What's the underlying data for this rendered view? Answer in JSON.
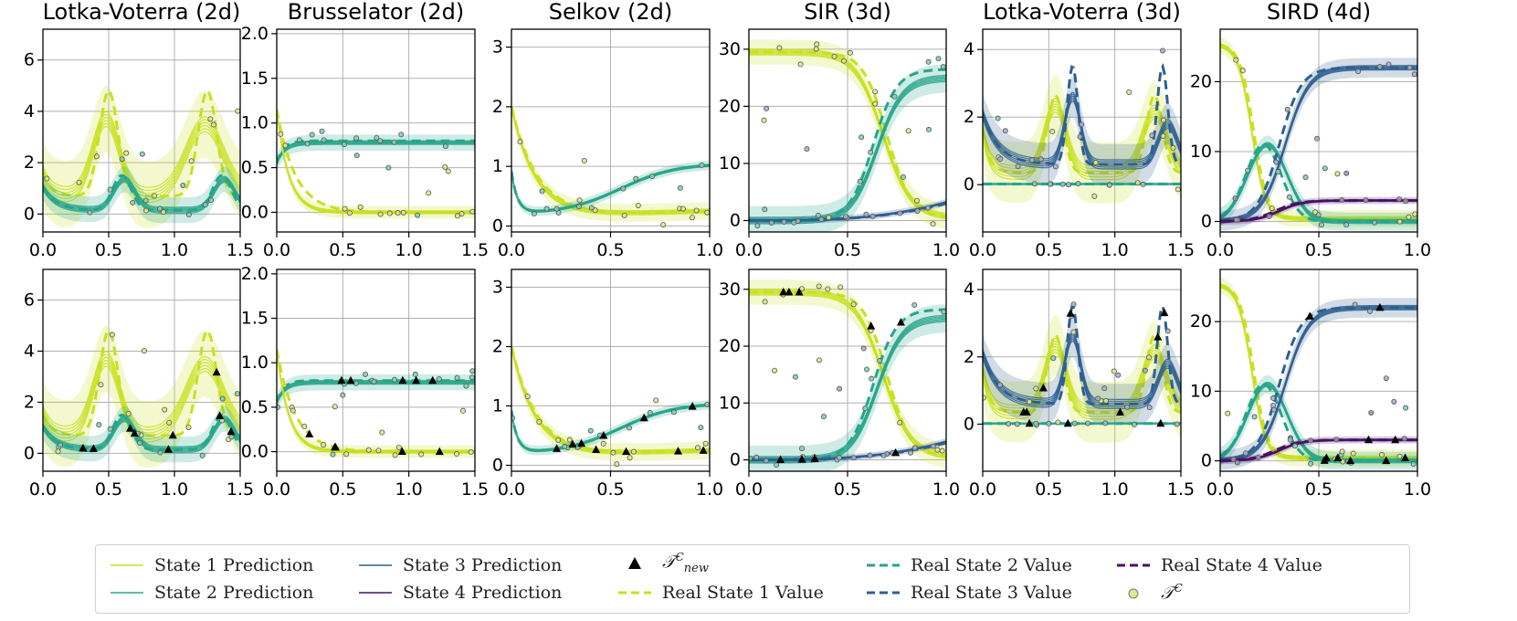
{
  "colors": {
    "state1": "#c7e020",
    "state2": "#26a58a",
    "state3": "#2f5f8f",
    "state4": "#471164",
    "grid": "#b0b0b0",
    "axis": "#000000"
  },
  "legend": {
    "state1_prediction": "State 1 Prediction",
    "state2_prediction": "State 2 Prediction",
    "state3_prediction": "State 3 Prediction",
    "state4_prediction": "State 4 Prediction",
    "t_new_main": "𝒯",
    "t_new_sup": "C",
    "t_new_sub": "new",
    "real_state1": "Real State 1 Value",
    "real_state2": "Real State 2 Value",
    "real_state3": "Real State 3 Value",
    "real_state4": "Real State 4 Value",
    "t_context_main": "𝒯",
    "t_context_sup": "C"
  },
  "chart_data": [
    {
      "type": "line",
      "row": 0,
      "col": 0,
      "title": "Lotka-Voterra (2d)",
      "system": "lv2",
      "xlim": [
        0,
        1.5
      ],
      "ylim": [
        -0.7,
        7.2
      ],
      "xticks": [
        0.0,
        0.5,
        1.0,
        1.5
      ],
      "xtick_labels": [
        "0.0",
        "0.5",
        "1.0",
        "1.5"
      ],
      "yticks": [
        0,
        2,
        4,
        6
      ],
      "ytick_labels": [
        "0",
        "2",
        "4",
        "6"
      ]
    },
    {
      "type": "line",
      "row": 0,
      "col": 1,
      "title": "Brusselator (2d)",
      "system": "bru",
      "xlim": [
        0,
        1.5
      ],
      "ylim": [
        -0.22,
        2.05
      ],
      "xticks": [
        0.0,
        0.5,
        1.0,
        1.5
      ],
      "xtick_labels": [
        "0.0",
        "0.5",
        "1.0",
        "1.5"
      ],
      "yticks": [
        0.0,
        0.5,
        1.0,
        1.5,
        2.0
      ],
      "ytick_labels": [
        "0.0",
        "0.5",
        "1.0",
        "1.5",
        "2.0"
      ]
    },
    {
      "type": "line",
      "row": 0,
      "col": 2,
      "title": "Selkov (2d)",
      "system": "sel",
      "xlim": [
        0,
        1.0
      ],
      "ylim": [
        -0.1,
        3.3
      ],
      "xticks": [
        0.0,
        0.5,
        1.0
      ],
      "xtick_labels": [
        "0.0",
        "0.5",
        "1.0"
      ],
      "yticks": [
        0,
        1,
        2,
        3
      ],
      "ytick_labels": [
        "0",
        "1",
        "2",
        "3"
      ]
    },
    {
      "type": "line",
      "row": 0,
      "col": 3,
      "title": "SIR (3d)",
      "system": "sir",
      "xlim": [
        0,
        1.0
      ],
      "ylim": [
        -2,
        33.5
      ],
      "xticks": [
        0.0,
        0.5,
        1.0
      ],
      "xtick_labels": [
        "0.0",
        "0.5",
        "1.0"
      ],
      "yticks": [
        0,
        10,
        20,
        30
      ],
      "ytick_labels": [
        "0",
        "10",
        "20",
        "30"
      ]
    },
    {
      "type": "line",
      "row": 0,
      "col": 4,
      "title": "Lotka-Voterra (3d)",
      "system": "lv3",
      "xlim": [
        0,
        1.5
      ],
      "ylim": [
        -1.4,
        4.6
      ],
      "xticks": [
        0.0,
        0.5,
        1.0,
        1.5
      ],
      "xtick_labels": [
        "0.0",
        "0.5",
        "1.0",
        "1.5"
      ],
      "yticks": [
        0,
        2,
        4
      ],
      "ytick_labels": [
        "0",
        "2",
        "4"
      ]
    },
    {
      "type": "line",
      "row": 0,
      "col": 5,
      "title": "SIRD (4d)",
      "system": "sird",
      "xlim": [
        0,
        1.0
      ],
      "ylim": [
        -1.5,
        27.5
      ],
      "xticks": [
        0.0,
        0.5,
        1.0
      ],
      "xtick_labels": [
        "0.0",
        "0.5",
        "1.0"
      ],
      "yticks": [
        0,
        10,
        20
      ],
      "ytick_labels": [
        "0",
        "10",
        "20"
      ]
    },
    {
      "type": "line",
      "row": 1,
      "col": 0,
      "title": "",
      "system": "lv2",
      "xlim": [
        0,
        1.5
      ],
      "ylim": [
        -0.7,
        7.2
      ],
      "xticks": [
        0.0,
        0.5,
        1.0,
        1.5
      ],
      "xtick_labels": [
        "0.0",
        "0.5",
        "1.0",
        "1.5"
      ],
      "yticks": [
        0,
        2,
        4,
        6
      ],
      "ytick_labels": [
        "0",
        "2",
        "4",
        "6"
      ]
    },
    {
      "type": "line",
      "row": 1,
      "col": 1,
      "title": "",
      "system": "bru",
      "xlim": [
        0,
        1.5
      ],
      "ylim": [
        -0.22,
        2.05
      ],
      "xticks": [
        0.0,
        0.5,
        1.0,
        1.5
      ],
      "xtick_labels": [
        "0.0",
        "0.5",
        "1.0",
        "1.5"
      ],
      "yticks": [
        0.0,
        0.5,
        1.0,
        1.5,
        2.0
      ],
      "ytick_labels": [
        "0.0",
        "0.5",
        "1.0",
        "1.5",
        "2.0"
      ]
    },
    {
      "type": "line",
      "row": 1,
      "col": 2,
      "title": "",
      "system": "sel",
      "xlim": [
        0,
        1.0
      ],
      "ylim": [
        -0.1,
        3.3
      ],
      "xticks": [
        0.0,
        0.5,
        1.0
      ],
      "xtick_labels": [
        "0.0",
        "0.5",
        "1.0"
      ],
      "yticks": [
        0,
        1,
        2,
        3
      ],
      "ytick_labels": [
        "0",
        "1",
        "2",
        "3"
      ]
    },
    {
      "type": "line",
      "row": 1,
      "col": 3,
      "title": "",
      "system": "sir",
      "xlim": [
        0,
        1.0
      ],
      "ylim": [
        -2,
        33.5
      ],
      "xticks": [
        0.0,
        0.5,
        1.0
      ],
      "xtick_labels": [
        "0.0",
        "0.5",
        "1.0"
      ],
      "yticks": [
        0,
        10,
        20,
        30
      ],
      "ytick_labels": [
        "0",
        "10",
        "20",
        "30"
      ]
    },
    {
      "type": "line",
      "row": 1,
      "col": 4,
      "title": "",
      "system": "lv3",
      "xlim": [
        0,
        1.5
      ],
      "ylim": [
        -1.4,
        4.6
      ],
      "xticks": [
        0.0,
        0.5,
        1.0,
        1.5
      ],
      "xtick_labels": [
        "0.0",
        "0.5",
        "1.0",
        "1.5"
      ],
      "yticks": [
        0,
        2,
        4
      ],
      "ytick_labels": [
        "0",
        "2",
        "4"
      ]
    },
    {
      "type": "line",
      "row": 1,
      "col": 5,
      "title": "",
      "system": "sird",
      "xlim": [
        0,
        1.0
      ],
      "ylim": [
        -1.5,
        27.5
      ],
      "xticks": [
        0.0,
        0.5,
        1.0
      ],
      "xtick_labels": [
        "0.0",
        "0.5",
        "1.0"
      ],
      "yticks": [
        0,
        10,
        20
      ],
      "ytick_labels": [
        "0",
        "10",
        "20"
      ]
    }
  ]
}
